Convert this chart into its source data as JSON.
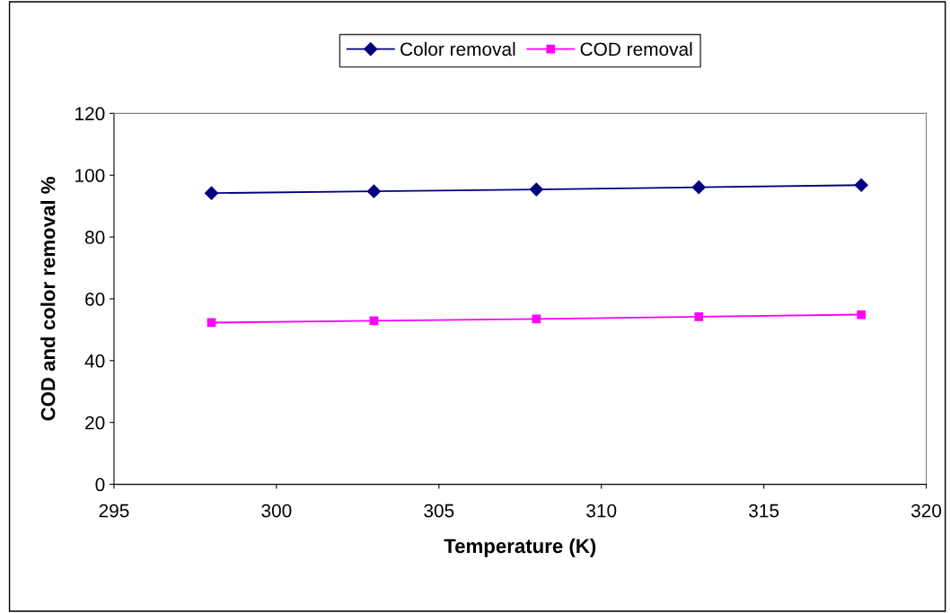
{
  "chart_data": {
    "type": "line",
    "xlabel": "Temperature (K)",
    "ylabel": "COD and color removal %",
    "x": [
      298,
      303,
      308,
      313,
      318
    ],
    "series": [
      {
        "name": "Color removal",
        "color": "#000080",
        "marker": "diamond",
        "values": [
          94.2,
          94.8,
          95.4,
          96.1,
          96.8
        ]
      },
      {
        "name": "COD removal",
        "color": "#ff00ff",
        "marker": "square",
        "values": [
          52.3,
          52.9,
          53.5,
          54.2,
          54.9
        ]
      }
    ],
    "xlim": [
      295,
      320
    ],
    "xticks": [
      295,
      300,
      305,
      310,
      315,
      320
    ],
    "ylim": [
      0,
      120
    ],
    "yticks": [
      0,
      20,
      40,
      60,
      80,
      100,
      120
    ],
    "grid": false,
    "legend": "top"
  }
}
